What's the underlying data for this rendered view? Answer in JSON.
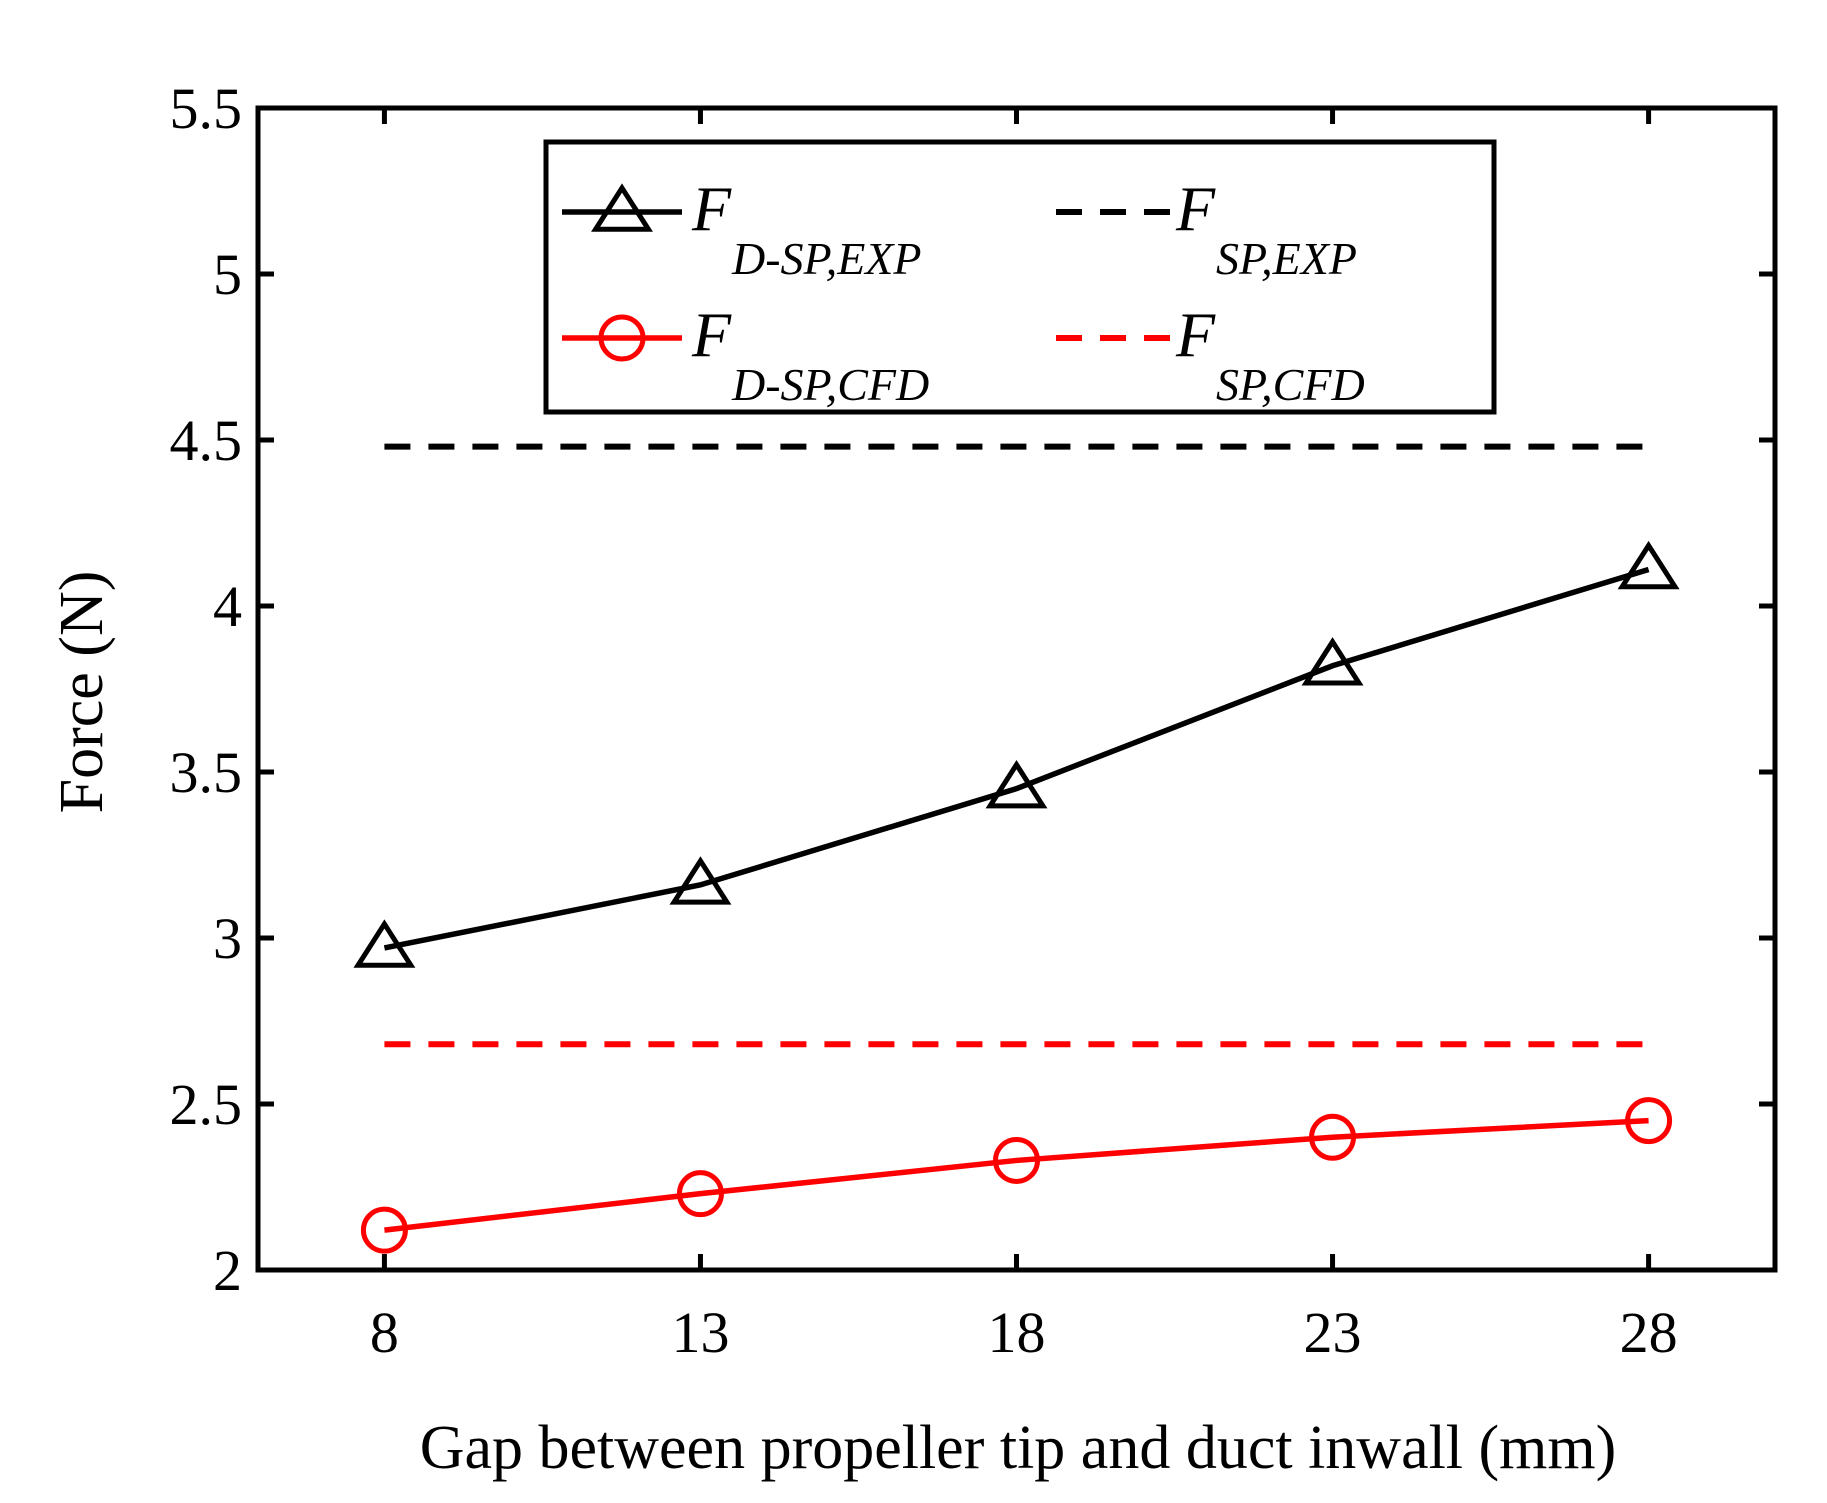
{
  "chart_data": {
    "type": "line",
    "title": "",
    "xlabel": "Gap between propeller tip and duct inwall (mm)",
    "ylabel": "Force (N)",
    "x": [
      8,
      13,
      18,
      23,
      28
    ],
    "xticks": [
      "8",
      "13",
      "18",
      "23",
      "28"
    ],
    "xlim": [
      6,
      30
    ],
    "ylim": [
      2,
      5.5
    ],
    "yticks": [
      "2",
      "2.5",
      "3",
      "3.5",
      "4",
      "4.5",
      "5",
      "5.5"
    ],
    "grid": false,
    "legend_position": "top-center",
    "series": [
      {
        "name": "F_D-SP,EXP",
        "main": "F",
        "sub": "D-SP,EXP",
        "style": "solid",
        "marker": "triangle",
        "color": "#000000",
        "values": [
          2.97,
          3.16,
          3.45,
          3.82,
          4.11
        ]
      },
      {
        "name": "F_SP,EXP",
        "main": "F",
        "sub": "SP,EXP",
        "style": "dashed",
        "marker": "none",
        "color": "#000000",
        "values": [
          4.48,
          4.48,
          4.48,
          4.48,
          4.48
        ]
      },
      {
        "name": "F_D-SP,CFD",
        "main": "F",
        "sub": "D-SP,CFD",
        "style": "solid",
        "marker": "circle",
        "color": "#ff0000",
        "values": [
          2.12,
          2.23,
          2.33,
          2.4,
          2.45
        ]
      },
      {
        "name": "F_SP,CFD",
        "main": "F",
        "sub": "SP,CFD",
        "style": "dashed",
        "marker": "none",
        "color": "#ff0000",
        "values": [
          2.68,
          2.68,
          2.68,
          2.68,
          2.68
        ]
      }
    ]
  }
}
